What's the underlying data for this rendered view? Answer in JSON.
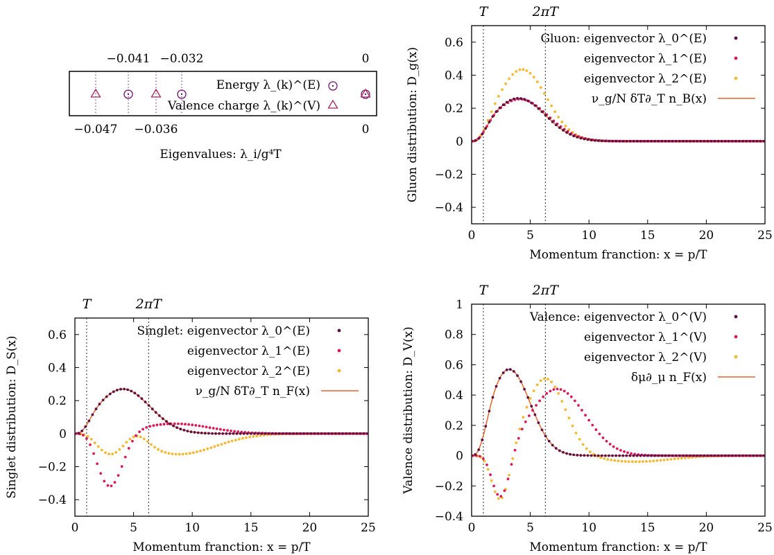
{
  "chart_data": [
    {
      "id": "eigen",
      "type": "scatter",
      "xlabel": "Eigenvalues: λ_i/g⁴T",
      "ticks_top": [
        "−0.041",
        "−0.032",
        "0"
      ],
      "ticks_bottom": [
        "−0.047",
        "−0.036",
        "0"
      ],
      "series": [
        {
          "name": "Energy λ_(k)^(E)",
          "marker": "circle-dot",
          "color": "#6c1470",
          "values": [
            -0.041,
            -0.032,
            0
          ]
        },
        {
          "name": "Valence charge λ_(k)^(V)",
          "marker": "triangle",
          "color": "#a8245e",
          "values": [
            -0.047,
            -0.036,
            0
          ]
        }
      ]
    },
    {
      "id": "gluon",
      "type": "scatter",
      "ylabel": "Gluon distribution: D_g(x)",
      "xlabel": "Momentum franction: x = p/T",
      "xlim": [
        0,
        25
      ],
      "ylim": [
        -0.5,
        0.7
      ],
      "xticks": [
        0,
        5,
        10,
        15,
        20,
        25
      ],
      "yticks": [
        -0.4,
        -0.2,
        0,
        0.2,
        0.4,
        0.6
      ],
      "ytick_labels": [
        "−0.4",
        "−0.2",
        "0",
        "0.2",
        "0.4",
        "0.6"
      ],
      "vlines": [
        {
          "x": 1,
          "label": "T"
        },
        {
          "x": 6.283,
          "label": "2πT"
        }
      ],
      "series": [
        {
          "name": "Gluon: eigenvector λ_0^(E)",
          "color": "#5a0f45",
          "kind": "gauss",
          "params": {
            "A": 0.26,
            "m": 4.0,
            "s": 2.3
          }
        },
        {
          "name": "eigenvector λ_1^(E)",
          "color": "#d91a56",
          "kind": "gauss",
          "params": {
            "A": 0.255,
            "m": 4.1,
            "s": 2.4
          }
        },
        {
          "name": "eigenvector λ_2^(E)",
          "color": "#f5b830",
          "kind": "gauss",
          "params": {
            "A": 0.435,
            "m": 4.3,
            "s": 2.1
          }
        },
        {
          "name": "ν_g/N δT∂_T n_B(x)",
          "color": "#e5642a",
          "kind": "gauss-line",
          "params": {
            "A": 0.26,
            "m": 4.0,
            "s": 2.3
          }
        }
      ]
    },
    {
      "id": "singlet",
      "type": "scatter",
      "ylabel": "Singlet distribution: D_S(x)",
      "xlabel": "Momentum franction: x = p/T",
      "xlim": [
        0,
        25
      ],
      "ylim": [
        -0.5,
        0.7
      ],
      "xticks": [
        0,
        5,
        10,
        15,
        20,
        25
      ],
      "yticks": [
        -0.4,
        -0.2,
        0,
        0.2,
        0.4,
        0.6
      ],
      "ytick_labels": [
        "−0.4",
        "−0.2",
        "0",
        "0.2",
        "0.4",
        "0.6"
      ],
      "vlines": [
        {
          "x": 1,
          "label": "T"
        },
        {
          "x": 6.283,
          "label": "2πT"
        }
      ],
      "series": [
        {
          "name": "Singlet: eigenvector λ_0^(E)",
          "color": "#5a0f45",
          "kind": "gauss",
          "params": {
            "A": 0.27,
            "m": 4.1,
            "s": 2.3
          }
        },
        {
          "name": "eigenvector λ_1^(E)",
          "color": "#d91a56",
          "kind": "dip",
          "params": {
            "A": -0.33,
            "m": 3.0,
            "s": 1.1,
            "B": 0.06,
            "m2": 8.5,
            "s2": 3.0
          }
        },
        {
          "name": "eigenvector λ_2^(E)",
          "color": "#f5b830",
          "kind": "wave",
          "params": {}
        },
        {
          "name": "ν_g/N δT∂_T n_F(x)",
          "color": "#e5642a",
          "kind": "gauss-line",
          "params": {
            "A": 0.27,
            "m": 4.1,
            "s": 2.3
          }
        }
      ]
    },
    {
      "id": "valence",
      "type": "scatter",
      "ylabel": "Valence distribution: D_V(x)",
      "xlabel": "Momentum franction: x = p/T",
      "xlim": [
        0,
        25
      ],
      "ylim": [
        -0.4,
        1.0
      ],
      "xticks": [
        0,
        5,
        10,
        15,
        20,
        25
      ],
      "yticks": [
        -0.4,
        -0.2,
        0,
        0.2,
        0.4,
        0.6,
        0.8,
        1.0
      ],
      "ytick_labels": [
        "−0.4",
        "−0.2",
        "0",
        "0.2",
        "0.4",
        "0.6",
        "0.8",
        "1"
      ],
      "vlines": [
        {
          "x": 1,
          "label": "T"
        },
        {
          "x": 6.283,
          "label": "2πT"
        }
      ],
      "series": [
        {
          "name": "Valence: eigenvector λ_0^(V)",
          "color": "#5a0f45",
          "kind": "gauss",
          "params": {
            "A": 0.57,
            "m": 3.2,
            "s": 1.8
          }
        },
        {
          "name": "eigenvector λ_1^(V)",
          "color": "#d91a56",
          "kind": "dip",
          "params": {
            "A": -0.33,
            "m": 2.5,
            "s": 0.8,
            "B": 0.44,
            "m2": 7.3,
            "s2": 2.4
          }
        },
        {
          "name": "eigenvector λ_2^(V)",
          "color": "#f5b830",
          "kind": "dip2",
          "params": {
            "A": -0.33,
            "m": 2.5,
            "s": 0.8,
            "B": 0.51,
            "m2": 6.3,
            "s2": 1.7,
            "C": -0.04,
            "m3": 14,
            "s3": 3.0
          }
        },
        {
          "name": "δμ∂_μ n_F(x)",
          "color": "#e5642a",
          "kind": "gauss-line",
          "params": {
            "A": 0.57,
            "m": 3.2,
            "s": 1.8
          }
        }
      ]
    }
  ]
}
